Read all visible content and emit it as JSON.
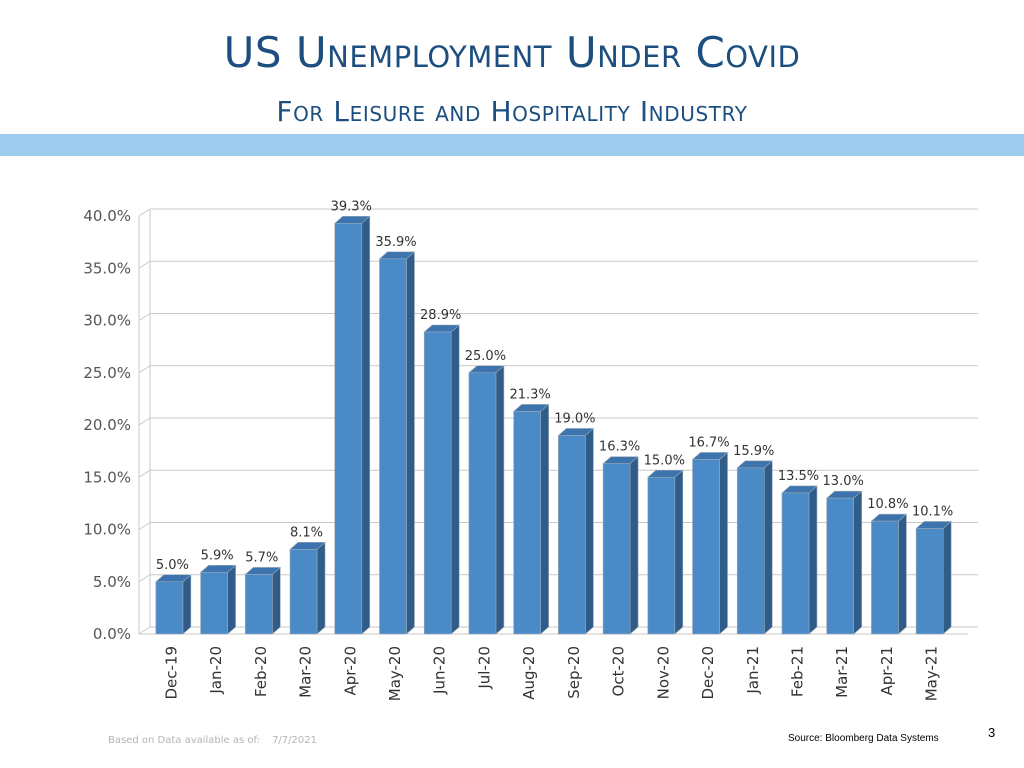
{
  "slide": {
    "title": "US Unemployment Under Covid",
    "subtitle": "For Leisure and Hospitality Industry",
    "footer_note": "Based on Data available as of:",
    "footer_date": "7/7/2021",
    "source": "Source:  Bloomberg Data Systems",
    "page_number": "3"
  },
  "colors": {
    "title": "#1c4f7f",
    "band": "#9ccbee",
    "bar_front": "#4a8ac6",
    "bar_top": "#3d74ae",
    "bar_side": "#2f5c89",
    "grid": "#c8c8c8",
    "label": "#333333",
    "axis_label": "#555555"
  },
  "chart_data": {
    "type": "bar",
    "title": "",
    "xlabel": "",
    "ylabel": "",
    "ylim": [
      0,
      40
    ],
    "yticks": [
      0,
      5,
      10,
      15,
      20,
      25,
      30,
      35,
      40
    ],
    "ytick_labels": [
      "0.0%",
      "5.0%",
      "10.0%",
      "15.0%",
      "20.0%",
      "25.0%",
      "30.0%",
      "35.0%",
      "40.0%"
    ],
    "categories": [
      "Dec-19",
      "Jan-20",
      "Feb-20",
      "Mar-20",
      "Apr-20",
      "May-20",
      "Jun-20",
      "Jul-20",
      "Aug-20",
      "Sep-20",
      "Oct-20",
      "Nov-20",
      "Dec-20",
      "Jan-21",
      "Feb-21",
      "Mar-21",
      "Apr-21",
      "May-21"
    ],
    "values": [
      5.0,
      5.9,
      5.7,
      8.1,
      39.3,
      35.9,
      28.9,
      25.0,
      21.3,
      19.0,
      16.3,
      15.0,
      16.7,
      15.9,
      13.5,
      13.0,
      10.8,
      10.1
    ],
    "data_labels": [
      "5.0%",
      "5.9%",
      "5.7%",
      "8.1%",
      "39.3%",
      "35.9%",
      "28.9%",
      "25.0%",
      "21.3%",
      "19.0%",
      "16.3%",
      "15.0%",
      "16.7%",
      "15.9%",
      "13.5%",
      "13.0%",
      "10.8%",
      "10.1%"
    ],
    "grid": true,
    "legend": "none",
    "style": "3d-column"
  }
}
